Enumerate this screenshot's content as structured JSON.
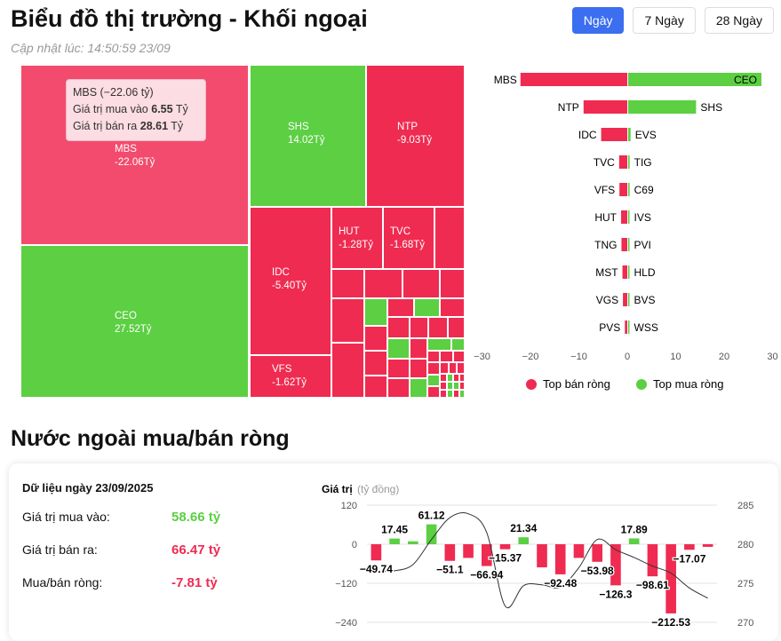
{
  "header": {
    "title": "Biểu đồ thị trường - Khối ngoại",
    "updated": "Cập nhật lúc: 14:50:59 23/09",
    "tabs": [
      {
        "label": "Ngày",
        "active": true
      },
      {
        "label": "7 Ngày"
      },
      {
        "label": "28 Ngày"
      }
    ]
  },
  "treemap": {
    "tiles": [
      {
        "name": "MBS",
        "value": "-22.06Tỷ"
      },
      {
        "name": "CEO",
        "value": "27.52Tỷ"
      },
      {
        "name": "SHS",
        "value": "14.02Tỷ"
      },
      {
        "name": "NTP",
        "value": "-9.03Tỷ"
      },
      {
        "name": "IDC",
        "value": "-5.40Tỷ"
      },
      {
        "name": "VFS",
        "value": "-1.62Tỷ"
      },
      {
        "name": "HUT",
        "value": "-1.28Tỷ"
      },
      {
        "name": "TVC",
        "value": "-1.68Tỷ"
      }
    ],
    "tooltip": {
      "title": "MBS (−22.06 tỷ)",
      "buy_label": "Giá trị mua vào",
      "buy": "6.55",
      "sell_label": "Giá trị bán ra",
      "sell": "28.61",
      "unit": "Tỷ"
    },
    "colors": {
      "sell": "#ef2b51",
      "buy": "#5ccf43"
    }
  },
  "chart_data": [
    {
      "type": "bar",
      "orientation": "horizontal",
      "xlim": [
        -30,
        30
      ],
      "xticks": [
        "−30",
        "−20",
        "−10",
        "0",
        "10",
        "20",
        "30"
      ],
      "sell": {
        "name": "Top bán ròng",
        "labels": [
          "MBS",
          "NTP",
          "IDC",
          "TVC",
          "VFS",
          "HUT",
          "TNG",
          "MST",
          "VGS",
          "PVS"
        ],
        "values": [
          -22.06,
          -9.03,
          -5.4,
          -1.68,
          -1.62,
          -1.28,
          -1.2,
          -1.0,
          -0.9,
          -0.5
        ]
      },
      "buy": {
        "name": "Top mua ròng",
        "labels": [
          "CEO",
          "SHS",
          "EVS",
          "TIG",
          "C69",
          "IVS",
          "PVI",
          "HLD",
          "BVS",
          "WSS"
        ],
        "values": [
          27.52,
          14.02,
          0.5,
          0.3,
          0.3,
          0.1,
          0.1,
          0.1,
          0.1,
          0.05
        ]
      }
    },
    {
      "type": "bar",
      "ylabel": "Giá trị",
      "yunit": "(tỷ đồng)",
      "ylim": [
        -240,
        120
      ],
      "yticks": [
        "120",
        "0",
        "−120",
        "−240"
      ],
      "y2lim": [
        270,
        285
      ],
      "y2ticks": [
        "285",
        "280",
        "275",
        "270"
      ],
      "values": [
        -49.74,
        17.45,
        9,
        61.12,
        -51.1,
        -42,
        -66.94,
        -15.37,
        21.34,
        -71,
        -92.48,
        -42,
        -53.98,
        -126.3,
        17.89,
        -98.61,
        -212.53,
        -17.07,
        -8
      ],
      "labels": [
        "−49.74",
        "17.45",
        "",
        "61.12",
        "−51.1",
        "",
        "−66.94",
        "−15.37",
        "21.34",
        "",
        "−92.48",
        "",
        "−53.98",
        "−126.3",
        "17.89",
        "−98.61",
        "−212.53",
        "−17.07",
        ""
      ],
      "line": [
        276.5,
        276.6,
        277.4,
        280.6,
        283.4,
        283.9,
        281.5,
        272.1,
        274.7,
        274.8,
        274.5,
        277,
        280.6,
        279.3,
        278.3,
        277.2,
        276.3,
        274.4,
        273.1
      ]
    }
  ],
  "section": {
    "title": "Nước ngoài mua/bán ròng",
    "date_label": "Dữ liệu ngày 23/09/2025",
    "rows": [
      {
        "label": "Giá trị mua vào:",
        "value": "58.66 tỷ",
        "color": "#5ccf43"
      },
      {
        "label": "Giá trị bán ra:",
        "value": "66.47 tỷ",
        "color": "#ef2b51"
      },
      {
        "label": "Mua/bán ròng:",
        "value": "-7.81 tỷ",
        "color": "#ef2b51"
      }
    ]
  }
}
